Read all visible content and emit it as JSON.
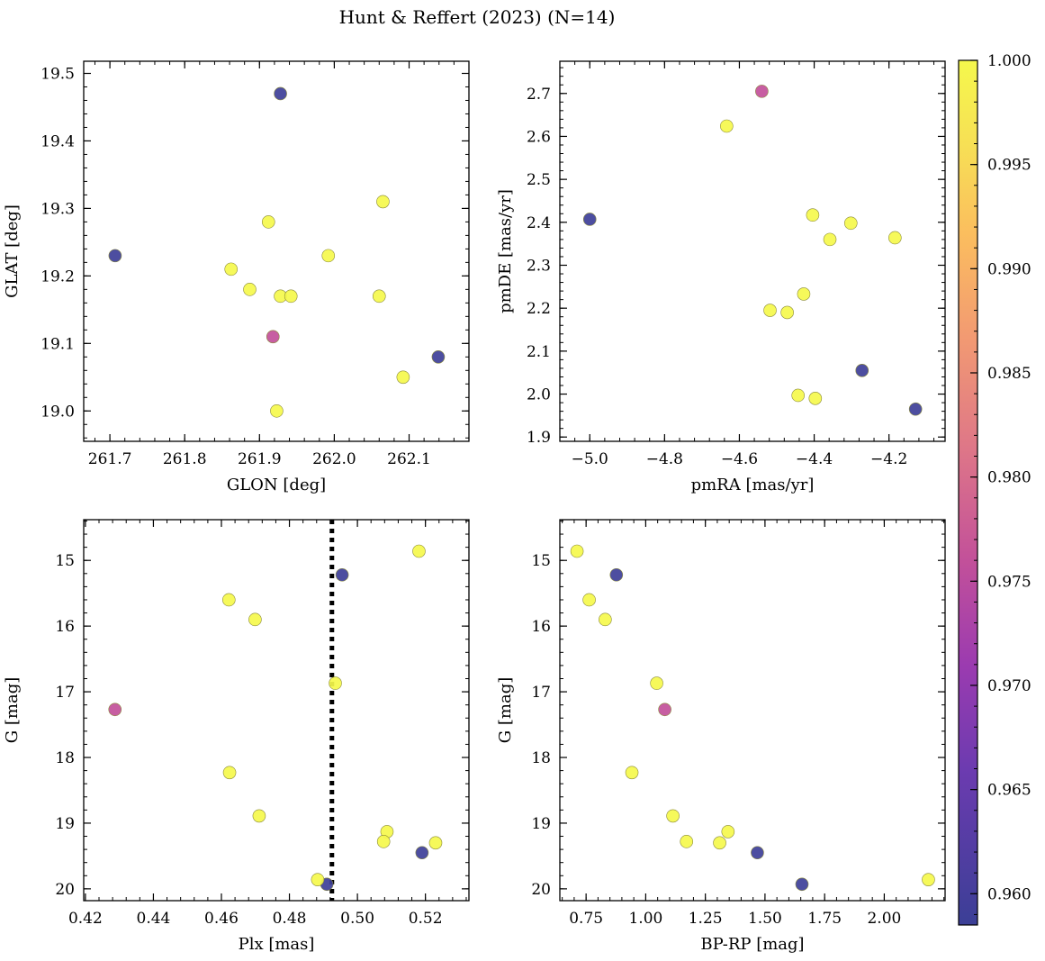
{
  "title": "Hunt & Reffert (2023) (N=14)",
  "colormap": "plasma",
  "marker_edge_color": "#8a8a3a",
  "colorbar": {
    "range": [
      0.9585,
      1.0
    ],
    "ticks": [
      0.96,
      0.965,
      0.97,
      0.975,
      0.98,
      0.985,
      0.99,
      0.995,
      1.0
    ],
    "tick_labels": [
      "0.960",
      "0.965",
      "0.970",
      "0.975",
      "0.980",
      "0.985",
      "0.990",
      "0.995",
      "1.000"
    ]
  },
  "chart_data": [
    {
      "type": "scatter",
      "xlabel": "GLON [deg]",
      "ylabel": "GLAT [deg]",
      "xlim": [
        261.665,
        262.18
      ],
      "ylim": [
        18.955,
        19.518
      ],
      "y_inverted": false,
      "xticks": [
        261.7,
        261.8,
        261.9,
        262.0,
        262.1
      ],
      "xtick_labels": [
        "261.7",
        "261.8",
        "261.9",
        "262.0",
        "262.1"
      ],
      "yticks": [
        19.0,
        19.1,
        19.2,
        19.3,
        19.4,
        19.5
      ],
      "ytick_labels": [
        "19.0",
        "19.1",
        "19.2",
        "19.3",
        "19.4",
        "19.5"
      ],
      "points": [
        {
          "x": 261.928,
          "y": 19.47,
          "c": 0.959
        },
        {
          "x": 261.707,
          "y": 19.23,
          "c": 0.959
        },
        {
          "x": 262.139,
          "y": 19.08,
          "c": 0.959
        },
        {
          "x": 261.918,
          "y": 19.11,
          "c": 0.976
        },
        {
          "x": 262.065,
          "y": 19.31,
          "c": 1.0
        },
        {
          "x": 261.912,
          "y": 19.28,
          "c": 1.0
        },
        {
          "x": 261.992,
          "y": 19.23,
          "c": 1.0
        },
        {
          "x": 261.862,
          "y": 19.21,
          "c": 1.0
        },
        {
          "x": 261.887,
          "y": 19.18,
          "c": 1.0
        },
        {
          "x": 261.928,
          "y": 19.17,
          "c": 1.0
        },
        {
          "x": 261.942,
          "y": 19.17,
          "c": 1.0
        },
        {
          "x": 262.06,
          "y": 19.17,
          "c": 1.0
        },
        {
          "x": 262.092,
          "y": 19.05,
          "c": 1.0
        },
        {
          "x": 261.923,
          "y": 19.0,
          "c": 1.0
        }
      ]
    },
    {
      "type": "scatter",
      "xlabel": "pmRA [mas/yr]",
      "ylabel": "pmDE [mas/yr]",
      "xlim": [
        -5.08,
        -4.05
      ],
      "ylim": [
        1.89,
        2.775
      ],
      "y_inverted": false,
      "xticks": [
        -5.0,
        -4.8,
        -4.6,
        -4.4,
        -4.2
      ],
      "xtick_labels": [
        "−5.0",
        "−4.8",
        "−4.6",
        "−4.4",
        "−4.2"
      ],
      "yticks": [
        1.9,
        2.0,
        2.1,
        2.2,
        2.3,
        2.4,
        2.5,
        2.6,
        2.7
      ],
      "ytick_labels": [
        "1.9",
        "2.0",
        "2.1",
        "2.2",
        "2.3",
        "2.4",
        "2.5",
        "2.6",
        "2.7"
      ],
      "points": [
        {
          "x": -5.0,
          "y": 2.407,
          "c": 0.959
        },
        {
          "x": -4.272,
          "y": 2.055,
          "c": 0.959
        },
        {
          "x": -4.129,
          "y": 1.965,
          "c": 0.959
        },
        {
          "x": -4.54,
          "y": 2.705,
          "c": 0.976
        },
        {
          "x": -4.634,
          "y": 2.624,
          "c": 1.0
        },
        {
          "x": -4.404,
          "y": 2.417,
          "c": 1.0
        },
        {
          "x": -4.302,
          "y": 2.398,
          "c": 1.0
        },
        {
          "x": -4.358,
          "y": 2.36,
          "c": 1.0
        },
        {
          "x": -4.184,
          "y": 2.364,
          "c": 1.0
        },
        {
          "x": -4.428,
          "y": 2.233,
          "c": 1.0
        },
        {
          "x": -4.518,
          "y": 2.195,
          "c": 1.0
        },
        {
          "x": -4.472,
          "y": 2.19,
          "c": 1.0
        },
        {
          "x": -4.443,
          "y": 1.997,
          "c": 1.0
        },
        {
          "x": -4.397,
          "y": 1.99,
          "c": 1.0
        }
      ]
    },
    {
      "type": "scatter",
      "xlabel": "Plx [mas]",
      "ylabel": "G [mag]",
      "xlim": [
        0.4195,
        0.5328
      ],
      "ylim": [
        14.38,
        20.18
      ],
      "y_inverted": true,
      "xticks": [
        0.42,
        0.44,
        0.46,
        0.48,
        0.5,
        0.52
      ],
      "xtick_labels": [
        "0.42",
        "0.44",
        "0.46",
        "0.48",
        "0.50",
        "0.52"
      ],
      "yticks": [
        15,
        16,
        17,
        18,
        19,
        20
      ],
      "ytick_labels": [
        "15",
        "16",
        "17",
        "18",
        "19",
        "20"
      ],
      "vline": {
        "x": 0.4925,
        "style": "dotted"
      },
      "points": [
        {
          "x": 0.4955,
          "y": 15.22,
          "c": 0.959
        },
        {
          "x": 0.519,
          "y": 19.45,
          "c": 0.959
        },
        {
          "x": 0.491,
          "y": 19.93,
          "c": 0.959
        },
        {
          "x": 0.4287,
          "y": 17.27,
          "c": 0.976
        },
        {
          "x": 0.5181,
          "y": 14.86,
          "c": 1.0
        },
        {
          "x": 0.4622,
          "y": 15.6,
          "c": 1.0
        },
        {
          "x": 0.4699,
          "y": 15.9,
          "c": 1.0
        },
        {
          "x": 0.4935,
          "y": 16.87,
          "c": 1.0
        },
        {
          "x": 0.4624,
          "y": 18.23,
          "c": 1.0
        },
        {
          "x": 0.4711,
          "y": 18.89,
          "c": 1.0
        },
        {
          "x": 0.5087,
          "y": 19.13,
          "c": 1.0
        },
        {
          "x": 0.5077,
          "y": 19.28,
          "c": 1.0
        },
        {
          "x": 0.523,
          "y": 19.3,
          "c": 1.0
        },
        {
          "x": 0.4883,
          "y": 19.86,
          "c": 1.0
        }
      ]
    },
    {
      "type": "scatter",
      "xlabel": "BP-RP [mag]",
      "ylabel": "G [mag]",
      "xlim": [
        0.64,
        2.255
      ],
      "ylim": [
        14.38,
        20.18
      ],
      "y_inverted": true,
      "xticks": [
        0.75,
        1.0,
        1.25,
        1.5,
        1.75,
        2.0
      ],
      "xtick_labels": [
        "0.75",
        "1.00",
        "1.25",
        "1.50",
        "1.75",
        "2.00"
      ],
      "yticks": [
        15,
        16,
        17,
        18,
        19,
        20
      ],
      "ytick_labels": [
        "15",
        "16",
        "17",
        "18",
        "19",
        "20"
      ],
      "points": [
        {
          "x": 0.877,
          "y": 15.22,
          "c": 0.959
        },
        {
          "x": 1.468,
          "y": 19.45,
          "c": 0.959
        },
        {
          "x": 1.655,
          "y": 19.93,
          "c": 0.959
        },
        {
          "x": 1.08,
          "y": 17.27,
          "c": 0.976
        },
        {
          "x": 0.712,
          "y": 14.86,
          "c": 1.0
        },
        {
          "x": 0.763,
          "y": 15.6,
          "c": 1.0
        },
        {
          "x": 0.83,
          "y": 15.9,
          "c": 1.0
        },
        {
          "x": 1.046,
          "y": 16.87,
          "c": 1.0
        },
        {
          "x": 0.942,
          "y": 18.23,
          "c": 1.0
        },
        {
          "x": 1.114,
          "y": 18.89,
          "c": 1.0
        },
        {
          "x": 1.345,
          "y": 19.13,
          "c": 1.0
        },
        {
          "x": 1.171,
          "y": 19.28,
          "c": 1.0
        },
        {
          "x": 1.31,
          "y": 19.3,
          "c": 1.0
        },
        {
          "x": 2.185,
          "y": 19.86,
          "c": 1.0
        }
      ]
    }
  ]
}
